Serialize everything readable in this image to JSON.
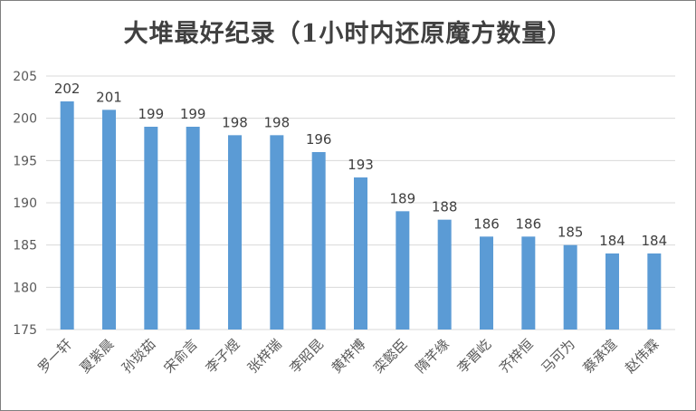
{
  "chart_data": {
    "type": "bar",
    "title": "大堆最好纪录（1小时内还原魔方数量）",
    "xlabel": "",
    "ylabel": "",
    "ylim": [
      175,
      205
    ],
    "yticks": [
      175,
      180,
      185,
      190,
      195,
      200,
      205
    ],
    "grid": true,
    "legend": "none",
    "bar_color": "#5b9bd5",
    "categories": [
      "罗一轩",
      "夏紫晨",
      "孙琰茹",
      "宋俞言",
      "李子煜",
      "张梓瑞",
      "李昭昆",
      "黄梓博",
      "栾懿臣",
      "隋芊缘",
      "李晋屹",
      "齐梓恒",
      "马可为",
      "蔡承瑄",
      "赵伟霖"
    ],
    "values": [
      202,
      201,
      199,
      199,
      198,
      198,
      196,
      193,
      189,
      188,
      186,
      186,
      185,
      184,
      184
    ],
    "value_labels": [
      "202",
      "201",
      "199",
      "199",
      "198",
      "198",
      "196",
      "193",
      "189",
      "188",
      "186",
      "186",
      "185",
      "184",
      "184"
    ]
  }
}
